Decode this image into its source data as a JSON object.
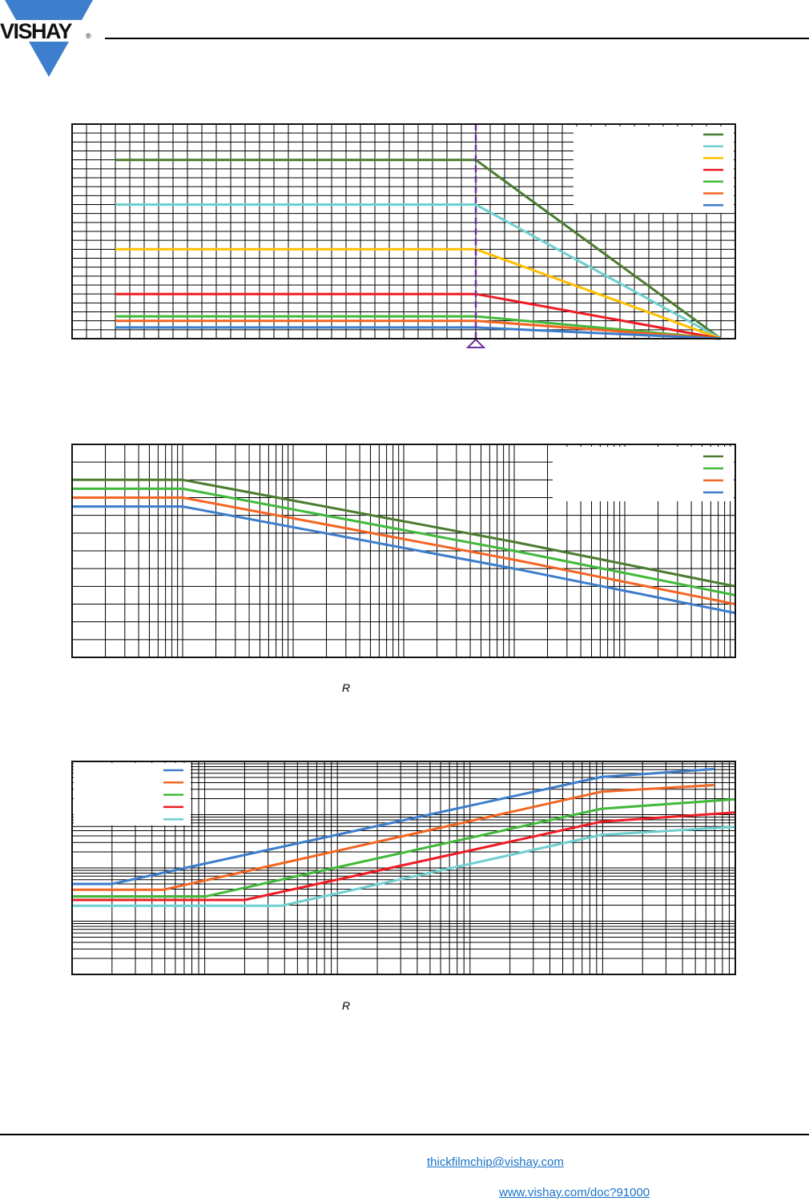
{
  "header": {
    "logo_text": "VISHAY",
    "logo_mark": "®",
    "brand_color": "#3d7fcc"
  },
  "footer": {
    "email": "thickfilmchip@vishay.com",
    "doc_link": "www.vishay.com/doc?91000",
    "link_color": "#1a73c8"
  },
  "chart_data": [
    {
      "type": "line",
      "title": "",
      "xlabel": "",
      "ylabel": "",
      "xscale": "linear",
      "yscale": "linear",
      "xlim": [
        0,
        46
      ],
      "ylim": [
        0,
        24
      ],
      "grid": true,
      "x_divisions": 46,
      "y_divisions": 24,
      "legend": "top-right",
      "marker_line": {
        "x": 28,
        "color": "#7030a0",
        "style": "dashed"
      },
      "series": [
        {
          "name": "",
          "color": "#4a7c2f",
          "points": [
            [
              3,
              20
            ],
            [
              28,
              20
            ],
            [
              45,
              0
            ]
          ]
        },
        {
          "name": "",
          "color": "#6fcfcf",
          "points": [
            [
              3,
              15
            ],
            [
              28,
              15
            ],
            [
              45,
              0
            ]
          ]
        },
        {
          "name": "",
          "color": "#ffc000",
          "points": [
            [
              3,
              10
            ],
            [
              28,
              10
            ],
            [
              45,
              0
            ]
          ]
        },
        {
          "name": "",
          "color": "#ee1c25",
          "points": [
            [
              3,
              5
            ],
            [
              28,
              5
            ],
            [
              45,
              0
            ]
          ]
        },
        {
          "name": "",
          "color": "#41b93a",
          "points": [
            [
              3,
              2.5
            ],
            [
              28,
              2.5
            ],
            [
              45,
              0
            ]
          ]
        },
        {
          "name": "",
          "color": "#f26522",
          "points": [
            [
              3,
              2
            ],
            [
              28,
              2
            ],
            [
              45,
              0
            ]
          ]
        },
        {
          "name": "",
          "color": "#3c7dcc",
          "points": [
            [
              3,
              1.25
            ],
            [
              28,
              1.25
            ],
            [
              45,
              0
            ]
          ]
        }
      ]
    },
    {
      "type": "line",
      "title": "",
      "xlabel": "R",
      "ylabel": "",
      "xscale": "log",
      "yscale": "linear",
      "xlim": [
        1,
        1000000
      ],
      "ylim": [
        0,
        12
      ],
      "grid": true,
      "y_divisions": 12,
      "legend": "top-right",
      "series": [
        {
          "name": "",
          "color": "#4a7c2f",
          "points": [
            [
              1,
              10
            ],
            [
              10,
              10
            ],
            [
              10000,
              6.5
            ],
            [
              1000000,
              4
            ]
          ]
        },
        {
          "name": "",
          "color": "#41b93a",
          "points": [
            [
              1,
              9.5
            ],
            [
              10,
              9.5
            ],
            [
              10000,
              6
            ],
            [
              1000000,
              3.5
            ]
          ]
        },
        {
          "name": "",
          "color": "#f26522",
          "points": [
            [
              1,
              9
            ],
            [
              10,
              9
            ],
            [
              10000,
              5.5
            ],
            [
              1000000,
              3
            ]
          ]
        },
        {
          "name": "",
          "color": "#3c7dcc",
          "points": [
            [
              1,
              8.5
            ],
            [
              10,
              8.5
            ],
            [
              10000,
              5
            ],
            [
              1000000,
              2.5
            ]
          ]
        }
      ]
    },
    {
      "type": "line",
      "title": "",
      "xlabel": "R",
      "ylabel": "",
      "xscale": "log",
      "yscale": "log",
      "xlim": [
        1,
        100000
      ],
      "ylim": [
        1,
        10000
      ],
      "grid": true,
      "legend": "top-left",
      "series": [
        {
          "name": "",
          "color": "#3c7dcc",
          "points": [
            [
              1,
              50
            ],
            [
              2,
              50
            ],
            [
              9800,
              5100
            ],
            [
              69000,
              7200
            ]
          ]
        },
        {
          "name": "",
          "color": "#f26522",
          "points": [
            [
              1,
              39
            ],
            [
              4.9,
              39
            ],
            [
              9800,
              2700
            ],
            [
              69000,
              3600
            ]
          ]
        },
        {
          "name": "",
          "color": "#41b93a",
          "points": [
            [
              1,
              29
            ],
            [
              10,
              29
            ],
            [
              9800,
              1290
            ],
            [
              100000,
              1950
            ]
          ]
        },
        {
          "name": "",
          "color": "#ee1c25",
          "points": [
            [
              1,
              25
            ],
            [
              20,
              25
            ],
            [
              9800,
              740
            ],
            [
              100000,
              1100
            ]
          ]
        },
        {
          "name": "",
          "color": "#6fcfcf",
          "points": [
            [
              1,
              19.5
            ],
            [
              38,
              19.5
            ],
            [
              9800,
              420
            ],
            [
              100000,
              590
            ]
          ]
        }
      ]
    }
  ]
}
